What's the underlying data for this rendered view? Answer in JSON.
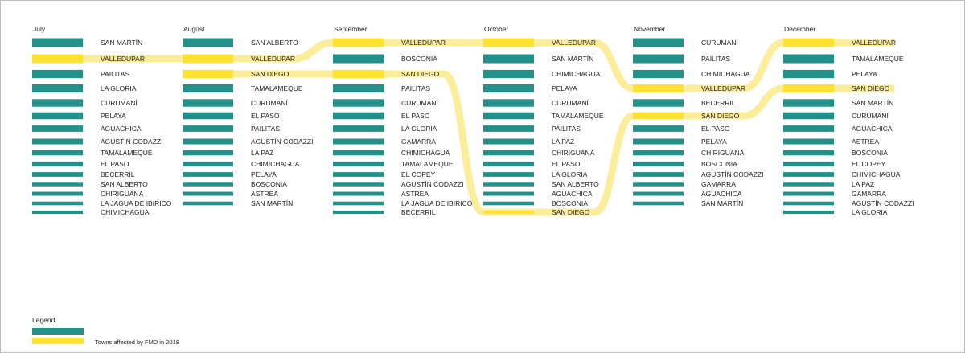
{
  "chart_data": {
    "type": "bump",
    "months": [
      "July",
      "August",
      "September",
      "October",
      "November",
      "December"
    ],
    "ranks_per_month": [
      [
        "SAN MARTÍN",
        "VALLEDUPAR",
        "PAILITAS",
        "LA GLORIA",
        "CURUMANÍ",
        "PELAYA",
        "AGUACHICA",
        "AGUSTÍN CODAZZI",
        "TAMALAMEQUE",
        "EL PASO",
        "BECERRIL",
        "SAN ALBERTO",
        "CHIRIGUANÁ",
        "LA JAGUA DE IBIRICO",
        "CHIMICHAGUA"
      ],
      [
        "SAN ALBERTO",
        "VALLEDUPAR",
        "SAN DIEGO",
        "TAMALAMEQUE",
        "CURUMANÍ",
        "EL PASO",
        "PAILITAS",
        "AGUSTÍN CODAZZI",
        "LA PAZ",
        "CHIMICHAGUA",
        "PELAYA",
        "BOSCONIA",
        "ASTREA",
        "SAN MARTÍN"
      ],
      [
        "VALLEDUPAR",
        "BOSCONIA",
        "SAN DIEGO",
        "PAILITAS",
        "CURUMANÍ",
        "EL PASO",
        "LA GLORIA",
        "GAMARRA",
        "CHIMICHAGUA",
        "TAMALAMEQUE",
        "EL COPEY",
        "AGUSTÍN CODAZZI",
        "ASTREA",
        "LA JAGUA DE IBIRICO",
        "BECERRIL"
      ],
      [
        "VALLEDUPAR",
        "SAN MARTÍN",
        "CHIMICHAGUA",
        "PELAYA",
        "CURUMANÍ",
        "TAMALAMEQUE",
        "PAILITAS",
        "LA PAZ",
        "CHIRIGUANÁ",
        "EL PASO",
        "LA GLORIA",
        "SAN ALBERTO",
        "AGUACHICA",
        "BOSCONIA",
        "SAN DIEGO"
      ],
      [
        "CURUMANÍ",
        "PAILITAS",
        "CHIMICHAGUA",
        "VALLEDUPAR",
        "BECERRIL",
        "SAN DIEGO",
        "EL PASO",
        "PELAYA",
        "CHIRIGUANÁ",
        "BOSCONIA",
        "AGUSTÍN CODAZZI",
        "GAMARRA",
        "AGUACHICA",
        "SAN MARTÍN"
      ],
      [
        "VALLEDUPAR",
        "TAMALAMEQUE",
        "PELAYA",
        "SAN DIEGO",
        "SAN MARTÍN",
        "CURUMANÍ",
        "AGUACHICA",
        "ASTREA",
        "BOSCONIA",
        "EL COPEY",
        "CHIMICHAGUA",
        "LA PAZ",
        "GAMARRA",
        "AGUSTÍN CODAZZI",
        "LA GLORIA"
      ]
    ],
    "bar_values": [
      [
        10,
        10,
        9,
        9,
        8,
        7,
        6,
        5,
        4.5,
        4,
        3.5,
        3,
        2.5,
        2,
        1.5
      ],
      [
        10,
        10,
        9,
        9,
        8,
        7,
        6,
        5,
        4.5,
        4,
        3.5,
        3,
        2.5,
        2
      ],
      [
        10,
        10,
        9,
        9,
        8,
        7,
        6,
        5,
        4.5,
        4,
        3.5,
        3,
        2.5,
        2,
        1.5
      ],
      [
        10,
        10,
        9,
        9,
        8,
        7,
        6,
        5,
        4.5,
        4,
        3.5,
        3,
        2.5,
        2,
        1.5
      ],
      [
        10,
        10,
        9,
        9,
        8,
        7,
        6,
        5,
        4.5,
        4,
        3.5,
        3,
        2.5,
        2
      ],
      [
        10,
        10,
        9,
        9,
        8,
        7,
        6,
        5,
        4.5,
        4,
        3.5,
        3,
        2.5,
        2,
        1.5
      ]
    ],
    "highlighted_towns": [
      "VALLEDUPAR",
      "SAN DIEGO"
    ],
    "colors": {
      "bar": "#23918a",
      "highlight": "#fde231",
      "flow": "#fbeb8f"
    },
    "legend": {
      "title": "Legend",
      "items": [
        "",
        "Towns affected by FMD in 2018"
      ]
    }
  }
}
